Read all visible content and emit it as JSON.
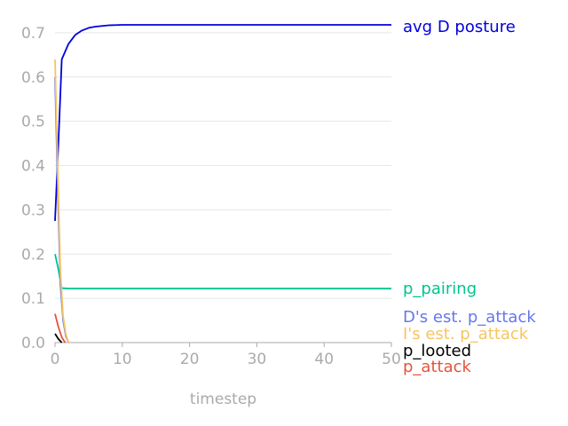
{
  "chart_data": {
    "type": "line",
    "title": "",
    "xlabel": "timestep",
    "ylabel": "",
    "xlim": [
      0,
      50
    ],
    "ylim": [
      0,
      0.75
    ],
    "x_ticks": [
      "0",
      "10",
      "20",
      "30",
      "40",
      "50"
    ],
    "y_ticks": [
      "0.0",
      "0.1",
      "0.2",
      "0.3",
      "0.4",
      "0.5",
      "0.6",
      "0.7"
    ],
    "grid": "horizontal",
    "legend": "right, labels at line ends",
    "series": [
      {
        "name": "avg D posture",
        "color": "#0000dd",
        "x": [
          0,
          0.5,
          1,
          2,
          3,
          4,
          5,
          6,
          8,
          10,
          15,
          20,
          30,
          40,
          50
        ],
        "y": [
          0.275,
          0.45,
          0.64,
          0.675,
          0.695,
          0.705,
          0.711,
          0.714,
          0.717,
          0.718,
          0.718,
          0.718,
          0.718,
          0.718,
          0.718
        ]
      },
      {
        "name": "p_pairing",
        "color": "#00c48f",
        "x": [
          0,
          0.5,
          1,
          2,
          5,
          10,
          15,
          20,
          25,
          30,
          35,
          40,
          45,
          50
        ],
        "y": [
          0.2,
          0.165,
          0.123,
          0.122,
          0.122,
          0.122,
          0.122,
          0.122,
          0.122,
          0.122,
          0.122,
          0.122,
          0.122,
          0.122
        ]
      },
      {
        "name": "D's est. p_attack",
        "color": "#6677ee",
        "x": [
          0,
          0.4,
          0.8,
          1.2,
          1.6,
          2
        ],
        "y": [
          0.6,
          0.35,
          0.13,
          0.05,
          0.015,
          0
        ]
      },
      {
        "name": "I's est. p_attack",
        "color": "#f7c55f",
        "x": [
          0,
          0.4,
          0.8,
          1.2,
          1.6,
          2
        ],
        "y": [
          0.64,
          0.4,
          0.16,
          0.06,
          0.02,
          0
        ]
      },
      {
        "name": "p_looted",
        "color": "#000000",
        "x": [
          0,
          0.5,
          1
        ],
        "y": [
          0.02,
          0.008,
          0
        ]
      },
      {
        "name": "p_attack",
        "color": "#e5533d",
        "x": [
          0,
          0.5,
          1,
          1.5
        ],
        "y": [
          0.065,
          0.035,
          0.012,
          0
        ]
      }
    ]
  }
}
